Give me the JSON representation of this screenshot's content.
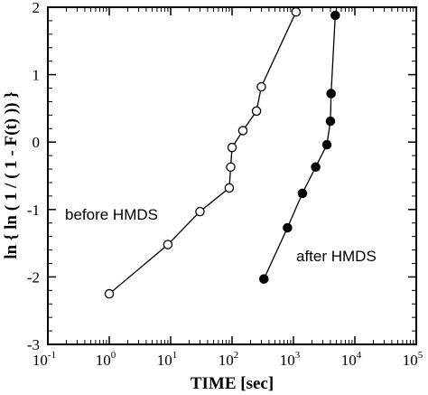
{
  "chart_data": {
    "type": "line",
    "title": "",
    "xlabel": "TIME [sec]",
    "ylabel": "ln { ln ( 1 / ( 1 - F(t) )) }",
    "xscale": "log",
    "xlim": [
      0.1,
      100000
    ],
    "ylim": [
      -3,
      2
    ],
    "x_ticks": [
      {
        "base": "10",
        "exp": "-1",
        "value": 0.1
      },
      {
        "base": "10",
        "exp": "0",
        "value": 1
      },
      {
        "base": "10",
        "exp": "1",
        "value": 10
      },
      {
        "base": "10",
        "exp": "2",
        "value": 100
      },
      {
        "base": "10",
        "exp": "3",
        "value": 1000
      },
      {
        "base": "10",
        "exp": "4",
        "value": 10000
      },
      {
        "base": "10",
        "exp": "5",
        "value": 100000
      }
    ],
    "y_ticks": [
      {
        "label": "2",
        "value": 2
      },
      {
        "label": "1",
        "value": 1
      },
      {
        "label": "0",
        "value": 0
      },
      {
        "label": "-1",
        "value": -1
      },
      {
        "label": "-2",
        "value": -2
      },
      {
        "label": "-3",
        "value": -3
      }
    ],
    "grid": false,
    "legend": "none",
    "series": [
      {
        "marker": "open-circle",
        "color": "#000000",
        "x": [
          1,
          9,
          30,
          90,
          95,
          100,
          150,
          250,
          300,
          1100
        ],
        "y": [
          -2.25,
          -1.52,
          -1.03,
          -0.68,
          -0.37,
          -0.08,
          0.17,
          0.46,
          0.82,
          1.93
        ]
      },
      {
        "marker": "filled-circle",
        "color": "#000000",
        "x": [
          330,
          800,
          1400,
          2300,
          3500,
          4000,
          4100,
          4800
        ],
        "y": [
          -2.03,
          -1.27,
          -0.76,
          -0.37,
          -0.04,
          0.31,
          0.72,
          1.88
        ]
      }
    ],
    "annotations": [
      {
        "id": "before",
        "text": "before HMDS",
        "near_series": 0
      },
      {
        "id": "after",
        "text": "after HMDS",
        "near_series": 1
      }
    ]
  }
}
